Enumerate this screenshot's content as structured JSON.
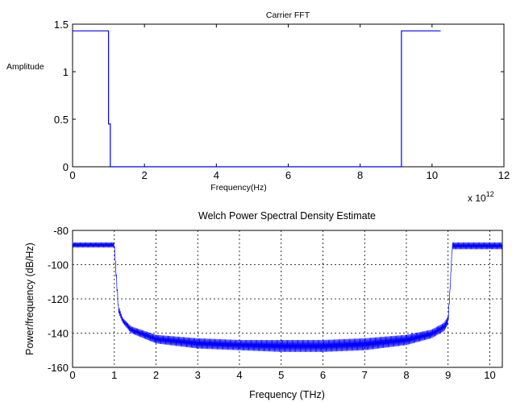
{
  "chart_data": [
    {
      "type": "line",
      "title": "Carrier FFT",
      "xlabel": "Frequency(Hz)",
      "ylabel": "Amplitude",
      "x_multiplier": "x 10",
      "x_multiplier_exp": "12",
      "xlim": [
        0,
        12
      ],
      "ylim": [
        0,
        1.5
      ],
      "xticks": [
        0,
        2,
        4,
        6,
        8,
        10,
        12
      ],
      "xtick_labels": [
        "0",
        "2",
        "4",
        "6",
        "8",
        "10",
        "12"
      ],
      "yticks": [
        0,
        0.5,
        1,
        1.5
      ],
      "ytick_labels": [
        "0",
        "0.5",
        "1",
        "1.5"
      ],
      "grid": false,
      "series": [
        {
          "color": "#0000ff",
          "x": [
            0,
            1.0,
            1.0,
            1.05,
            1.05,
            9.15,
            9.15,
            10.24
          ],
          "y": [
            1.43,
            1.43,
            0.45,
            0.45,
            0,
            0,
            1.43,
            1.43
          ]
        }
      ]
    },
    {
      "type": "line",
      "title": "Welch Power Spectral Density Estimate",
      "xlabel": "Frequency (THz)",
      "ylabel": "Power/frequency (dB/Hz)",
      "xlim": [
        0,
        10.3
      ],
      "ylim": [
        -160,
        -80
      ],
      "xticks": [
        0,
        1,
        2,
        3,
        4,
        5,
        6,
        7,
        8,
        9,
        10
      ],
      "xtick_labels": [
        "0",
        "1",
        "2",
        "3",
        "4",
        "5",
        "6",
        "7",
        "8",
        "9",
        "10"
      ],
      "yticks": [
        -160,
        -140,
        -120,
        -100,
        -80
      ],
      "ytick_labels": [
        "-160",
        "-140",
        "-120",
        "-100",
        "-80"
      ],
      "grid": true,
      "series": [
        {
          "color": "#0000ff",
          "envelope_upper": {
            "x": [
              0,
              0.5,
              1.0,
              1.05,
              1.1,
              1.2,
              1.4,
              2,
              3,
              4,
              5,
              6,
              7,
              8,
              8.6,
              8.9,
              9.0,
              9.05,
              9.1,
              9.6,
              10.3
            ],
            "y": [
              -87,
              -87,
              -87,
              -105,
              -124,
              -131,
              -136,
              -141,
              -143,
              -144,
              -144,
              -144,
              -143,
              -141,
              -138,
              -134,
              -130,
              -112,
              -87,
              -87,
              -87
            ]
          },
          "envelope_lower": {
            "x": [
              0,
              0.5,
              1.0,
              1.05,
              1.1,
              1.2,
              1.4,
              2,
              3,
              4,
              5,
              6,
              7,
              8,
              8.6,
              8.9,
              9.0,
              9.05,
              9.1,
              9.6,
              10.3
            ],
            "y": [
              -90,
              -90,
              -90,
              -110,
              -128,
              -134,
              -140,
              -146,
              -149,
              -150,
              -151,
              -151,
              -150,
              -147,
              -143,
              -139,
              -135,
              -115,
              -91,
              -91,
              -91
            ]
          }
        }
      ]
    }
  ]
}
